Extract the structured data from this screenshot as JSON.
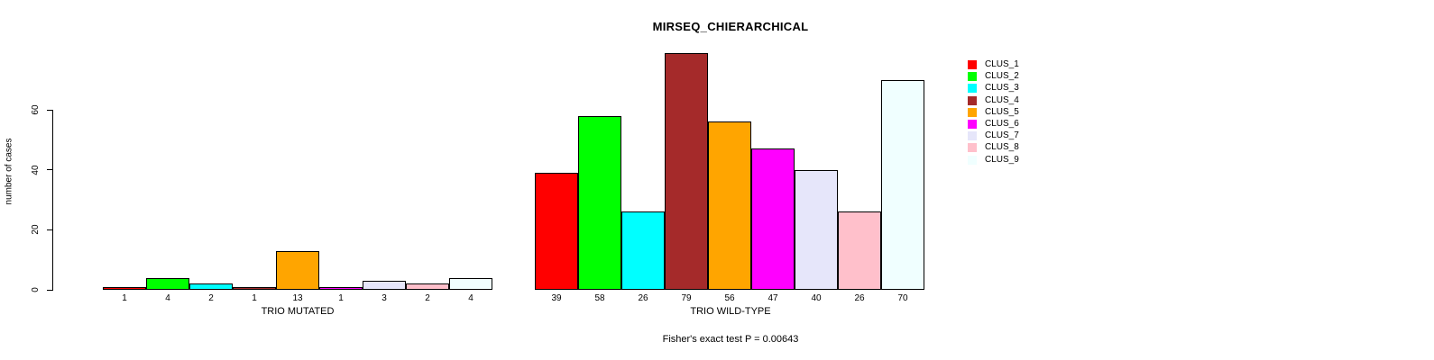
{
  "page": {
    "background_color": "#FFFFFF"
  },
  "chart_data": {
    "type": "bar",
    "title": "MIRSEQ_CHIERARCHICAL",
    "ylabel": "number of cases",
    "yticks": [
      0,
      20,
      40,
      60
    ],
    "ylim": [
      0,
      79
    ],
    "grid": false,
    "legend_position": "right",
    "bar_border_color": "#000000",
    "legend": [
      {
        "label": "CLUS_1",
        "color": "#FF0000"
      },
      {
        "label": "CLUS_2",
        "color": "#00FF00"
      },
      {
        "label": "CLUS_3",
        "color": "#00FFFF"
      },
      {
        "label": "CLUS_4",
        "color": "#A52A2A"
      },
      {
        "label": "CLUS_5",
        "color": "#FFA500"
      },
      {
        "label": "CLUS_6",
        "color": "#FF00FF"
      },
      {
        "label": "CLUS_7",
        "color": "#E6E6FA"
      },
      {
        "label": "CLUS_8",
        "color": "#FFC0CB"
      },
      {
        "label": "CLUS_9",
        "color": "#F0FFFF"
      }
    ],
    "groups": [
      {
        "label": "TRIO MUTATED",
        "values": [
          1,
          4,
          2,
          1,
          13,
          1,
          3,
          2,
          4
        ]
      },
      {
        "label": "TRIO WILD-TYPE",
        "values": [
          39,
          58,
          26,
          79,
          56,
          47,
          40,
          26,
          70
        ]
      }
    ],
    "annotation": "Fisher's exact test P = 0.00643"
  }
}
